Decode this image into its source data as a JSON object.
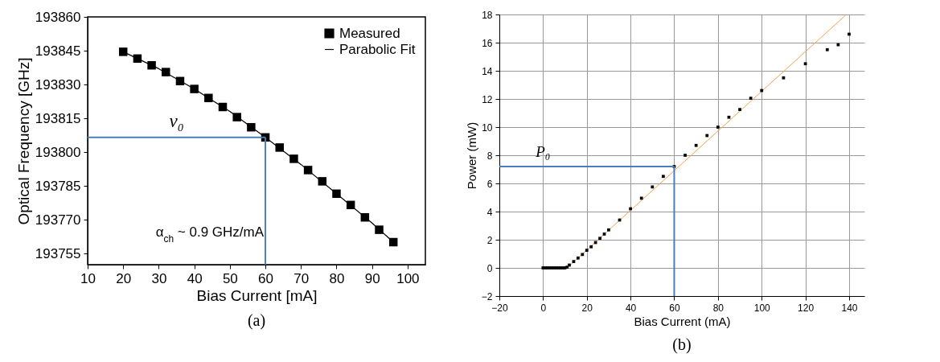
{
  "chart_data": [
    {
      "type": "scatter",
      "xlabel": "Bias Current [mA]",
      "ylabel": "Optical Frequency [GHz]",
      "xlim": [
        10,
        105
      ],
      "xticks": [
        10,
        20,
        30,
        40,
        50,
        60,
        70,
        80,
        90,
        100
      ],
      "ylim": [
        193750,
        193860
      ],
      "yticks": [
        193755,
        193770,
        193785,
        193800,
        193815,
        193830,
        193845,
        193860
      ],
      "grid": false,
      "legend": "top right",
      "annotations": [
        "(a)"
      ],
      "series": [
        {
          "name": "Measured",
          "type": "scatter",
          "marker": "square",
          "color": "#000000",
          "x": [
            20,
            24,
            28,
            32,
            36,
            40,
            44,
            48,
            52,
            56,
            60,
            64,
            68,
            72,
            76,
            80,
            84,
            88,
            92,
            96
          ],
          "values": [
            193844.5,
            193841.5,
            193838.5,
            193835.5,
            193831.5,
            193828,
            193824,
            193820,
            193815.5,
            193811,
            193806.5,
            193802,
            193797,
            193792,
            193787,
            193781.5,
            193776.5,
            193771,
            193765.5,
            193760
          ]
        },
        {
          "name": "Parabolic Fit",
          "type": "line",
          "marker": "none",
          "color": "#000000",
          "x": [
            20,
            30,
            40,
            50,
            60,
            70,
            80,
            90,
            96
          ],
          "values": [
            193844.5,
            193837,
            193828,
            193818,
            193806.5,
            193794.5,
            193781.5,
            193768.5,
            193760
          ]
        }
      ],
      "ref_lines": [
        {
          "axis": "y",
          "value": 193806.5,
          "label": "v₀",
          "color": "#4a7ebb"
        },
        {
          "axis": "x",
          "value": 60,
          "label": "α$_{ch}$ ~ 0.9 GHz/mA",
          "color": "#4a7ebb"
        }
      ]
    },
    {
      "type": "scatter",
      "xlabel": "Bias Current (mA)",
      "ylabel": "Power (mW)",
      "xlim": [
        -20,
        147
      ],
      "xticks": [
        -20,
        0,
        20,
        40,
        60,
        80,
        100,
        120,
        140
      ],
      "ylim": [
        -2,
        18
      ],
      "yticks": [
        -2,
        0,
        2,
        4,
        6,
        8,
        10,
        12,
        14,
        16,
        18
      ],
      "grid": true,
      "annotations": [
        "(b)"
      ],
      "series": [
        {
          "type": "scatter",
          "marker": "square",
          "color": "#000000",
          "x": [
            0,
            1,
            2,
            3,
            4,
            5,
            6,
            7,
            8,
            9,
            10,
            11,
            12,
            14,
            16,
            18,
            20,
            22,
            24,
            26,
            28,
            30,
            35,
            40,
            45,
            50,
            55,
            60,
            65,
            70,
            75,
            80,
            85,
            90,
            95,
            100,
            110,
            120,
            130,
            135,
            140
          ],
          "values": [
            0,
            0,
            0,
            0,
            0,
            0,
            0,
            0,
            0,
            0,
            0,
            0.05,
            0.2,
            0.45,
            0.7,
            0.95,
            1.25,
            1.5,
            1.8,
            2.1,
            2.4,
            2.7,
            3.4,
            4.2,
            4.95,
            5.75,
            6.5,
            7.2,
            8,
            8.7,
            9.4,
            10,
            10.7,
            11.25,
            12.05,
            12.6,
            13.5,
            14.5,
            15.5,
            15.85,
            16.6
          ]
        },
        {
          "type": "line",
          "marker": "none",
          "color": "#f5a04a",
          "x": [
            11,
            138.4
          ],
          "values": [
            0,
            17.95
          ]
        }
      ],
      "ref_lines": [
        {
          "axis": "y",
          "value": 7.2,
          "label": "P₀",
          "color": "#4a7ebb"
        },
        {
          "axis": "x",
          "value": 60,
          "color": "#4a7ebb"
        }
      ]
    }
  ]
}
